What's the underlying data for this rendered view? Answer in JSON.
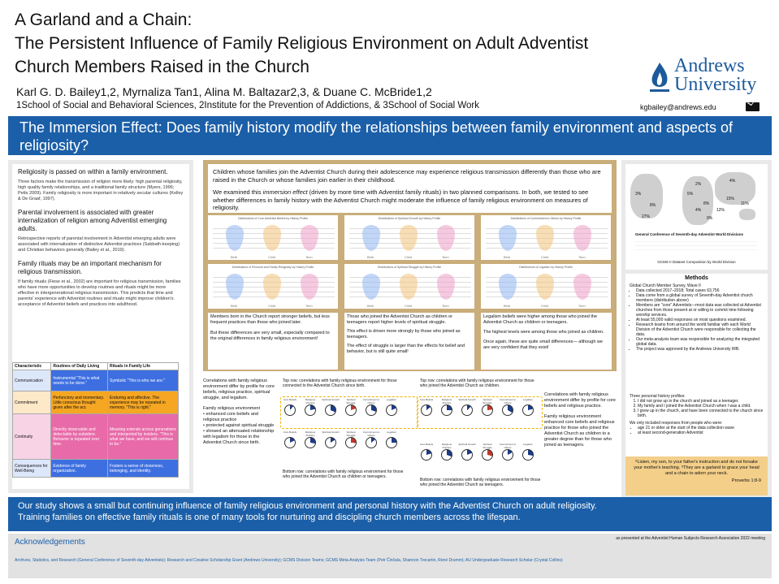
{
  "header": {
    "title_line1": "A Garland and a Chain:",
    "title_line2": "The Persistent Influence of Family Religious Environment on Adult Adventist",
    "title_line3": "Church Members Raised in the Church",
    "authors": "Karl G. D. Bailey1,2, Myrnaliza Tan1, Alina M. Baltazar2,3, & Duane C. McBride1,2",
    "affiliations": "1School of Social and Behavioral Sciences, 2Institute for the Prevention of Addictions, & 3School of Social Work",
    "email": "kgbailey@andrews.edu",
    "logo_line1": "Andrews",
    "logo_line2": "University"
  },
  "banner": {
    "text": "The Immersion Effect: Does family history modify the relationships between family environment and aspects of religiosity?"
  },
  "left": {
    "h1": "Religiosity is passed on within a family environment.",
    "p1": "Three factors make the transmission of religion more likely: high parental religiosity, high quality family relationships, and a traditional family structure (Myers, 1996; Petts 2009). Family religiosity is more important in relatively secular cultures (Kelley & De Graaf, 1997).",
    "h2": "Parental involvement is associated with greater internalization of religion among Adventist emerging adults.",
    "p2": "Retrospective reports of parental involvement in Adventist emerging adults were associated with internalization of distinctive Adventist practices (Sabbath-keeping) and Christian behaviors generally (Bailey et al., 2019).",
    "h3": "Family rituals may be an important mechanism for religious transmission.",
    "p3": "If family rituals (Fiese et al., 2002) are important for religious transmission, families who have more opportunities to develop routines and rituals might be more effective in intergenerational religious transmission. This predicts that time and parents' experience with Adventist routines and rituals might improve children's acceptance of Adventist beliefs and practices into adulthood.",
    "table": {
      "headers": [
        "Characteristic",
        "Routines of Daily Living",
        "Rituals in Family Life"
      ],
      "rows": [
        {
          "label": "Communication",
          "routine": "Instrumental\n\"This is what needs to be done.\"",
          "ritual": "Symbolic\n\"This is who we are.\""
        },
        {
          "label": "Commitment",
          "routine": "Perfunctory and momentary. Little conscious thought given after the act.",
          "ritual": "Enduring and affective. The experience may be repeated in memory. \"This is right.\""
        },
        {
          "label": "Continuity",
          "routine": "Directly observable and detectable by outsiders. Behavior is repeated over time.",
          "ritual": "Meaning extends across generations and interpreted by insiders. \"This is what we have, and we will continue to be.\""
        },
        {
          "label": "Consequences for Well-Being",
          "routine": "Evidence of family organization.",
          "ritual": "Fosters a sense of closeness, belonging, and identity."
        }
      ]
    }
  },
  "center": {
    "intro_p1": "Children whose families join the Adventist Church during their adolescence may experience religious transmission differently than those who are raised in the Church or whose families join earlier in their childhood.",
    "intro_p2_a": "We examined this ",
    "intro_p2_em": "immersion effect",
    "intro_p2_b": " (driven by more time with Adventist family rituals) in two planned comparisons. In both, we tested to see whether differences in family history with the Adventist Church might  moderate the influence of family religious environment on measures of religiosity.",
    "violins": [
      {
        "title": "Distributions of Core Adventist Beliefs by History Profile"
      },
      {
        "title": "Distributions of Spiritual Growth by History Profile"
      },
      {
        "title": "Distributions of Commitment to Others by History Profile"
      },
      {
        "title": "Distributions of Personal and Family Religiosity by History Profile"
      },
      {
        "title": "Distributions of Spiritual Struggle by History Profile"
      },
      {
        "title": "Distributions of Legalism by History Profile"
      }
    ],
    "violin_axis": [
      "Birth",
      "Child",
      "Teen"
    ],
    "col1_p1": "Members born in the Church report stronger beliefs, but less frequent practices than those who joined later.",
    "col1_p2": "But these differences are very small, especially compared to the original differences in family religious environment!",
    "col2_p1": "Those who joined the Adventist Church as children or teenagers report higher levels of spiritual struggle.",
    "col2_p2": "This effect is driven more strongly by those who joined as teenagers.",
    "col2_p3": "The effect of struggle is larger than the effects for belief and behavior, but is still quite small!",
    "col3_p1": "Legalism beliefs were higher among those who joined the Adventist Church as children or teenagers.",
    "col3_p2": "The highest levels were among those who joined as children.",
    "col3_p3": "Once again, these are quite small differences— although we are very confident that they exist!"
  },
  "correlations": {
    "left_intro": "Correlations with family religious environment differ by profile for core beliefs, religious practice, spiritual struggle, and legalism.",
    "left_env": "Family religious environment",
    "left_bullets": [
      "enhanced core beliefs and religious practice",
      "protected against spiritual struggle",
      "showed an attenuated relationship with legalism for those in the Adventist Church since birth."
    ],
    "group1_top": "Top row: correlations with family religious environment for those connected to the Adventist Church since birth.",
    "group1_bottom": "Bottom row: correlations with family religious environment for those who joined the Adventist Church as children or teenagers.",
    "group2_top": "Top row: correlations with family religious environment for those who joined the Adventist Church as children.",
    "group2_bottom": "Bottom row: correlations with family religious environment for those who joined the Adventist Church as teenagers.",
    "pie_labels": [
      "Core Beliefs",
      "Religious Practice",
      "Spiritual Growth",
      "Spiritual Struggle",
      "Commitment to Others",
      "Legalism"
    ],
    "right_intro": "Correlations with family religious environment differ by profile for core beliefs and religious practice.",
    "right_p2": "Family religious environment enhanced core beliefs and religious practice for those who joined the Adventist Church as children to a greater degree than for those who joined as teenagers."
  },
  "right": {
    "map_legend_title": "General Conference of Seventh-day Adventist World Divisions",
    "map_caption": "GCMS II Dataset Composition by World Division",
    "map_pcts": [
      "4%",
      "2%",
      "3%",
      "5%",
      "8%",
      "27%",
      "8%",
      "4%",
      "12%",
      "15%",
      "11%",
      "9%"
    ],
    "methods_title": "Methods",
    "methods_sub": "Global Church Member Survey, Wave II",
    "methods_bullets": [
      "Data collected 2017–2018; Total cases 63,756",
      "Data come from a global survey of Seventh-day Adventist church members (distribution above)",
      "Members are \"core\" Adventists—most data was collected at Adventist churches from those present at or willing to commit time following worship services.",
      "At least 55,000 valid responses on most questions examined.",
      "Research teams from around the world familiar with each World Division of the Adventist Church were responsible for collecting the data.",
      "Our meta-analysis team was responsible for analyzing the integrated global data.",
      "The project was approved by the Andrews University IRB."
    ],
    "profiles_title": "Three personal history profiles:",
    "profiles": [
      "I did not grow up in the church and joined as a teenager.",
      "My family and I joined the Adventist Church when I was a child.",
      "I grew up in the church, and have been connected to the church since birth."
    ],
    "included_title": "We only included responses from people who were:",
    "included": [
      "age 21 or older at the start of the data collection wave",
      "at least second-generation Adventist"
    ],
    "verse": "⁸Listen, my son, to your father's instruction and do not forsake your mother's teaching. ⁹They are a garland to grace your head and a chain to adorn your neck.",
    "verse_ref": "Proverbs 1:8-9"
  },
  "conclusion": {
    "line1": "Our study shows a small but continuing influence of family religious environment and personal history with the Adventist Church on adult religiosity.",
    "line2": "Training families on effective family rituals is one of many tools for nurturing and discipling church members across the lifespan."
  },
  "ack": {
    "title": "Acknowledgements",
    "presented": "as presented at the Adventist Human Subjects Research Association 2022 meeting",
    "text": "Archives, Statistics, and Research (General Conference of Seventh-day Adventists); Research and Creative Scholarship Grant (Andrews University); GCMS Division Teams; GCMS Meta-Analysis Team (Petr Činčala, Shannon Trecartin, René Drumm); AU Undergraduate Research Scholar (Crystal Collins)"
  },
  "colors": {
    "banner_blue": "#1b5fa8",
    "tan_panel": "#c9ad7a",
    "verse_gold": "#f3cf8a",
    "table_orange": "#f5a623",
    "table_pink": "#e86aa8",
    "table_blue": "#3d6fe0",
    "logo_blue": "#1d5a9b"
  }
}
